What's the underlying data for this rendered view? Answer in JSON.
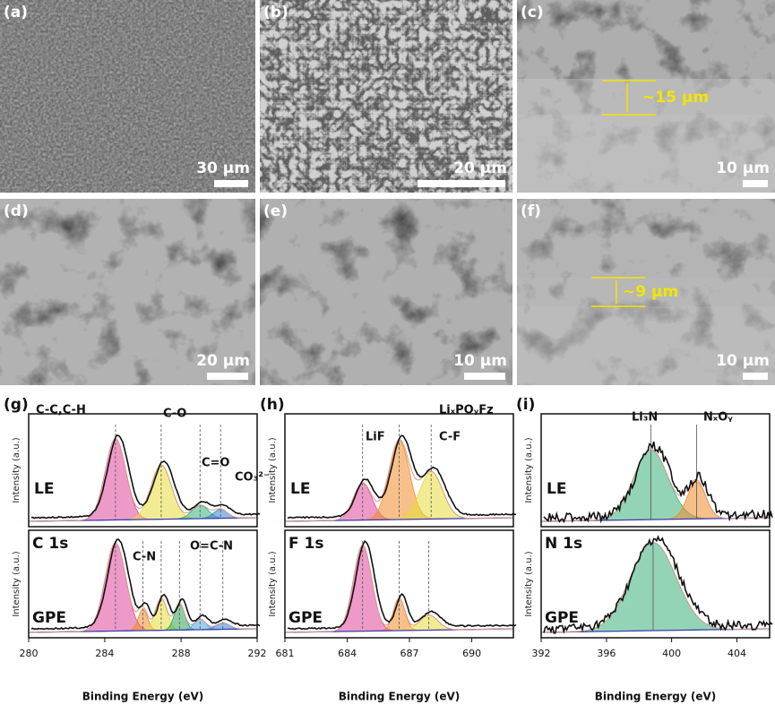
{
  "sem_panels": [
    {
      "label": "(a)",
      "scale": "30 μm"
    },
    {
      "label": "(b)",
      "scale": "20 μm"
    },
    {
      "label": "(c)",
      "scale": "10 μm",
      "thickness": "~15 μm"
    },
    {
      "label": "(d)",
      "scale": "20 μm"
    },
    {
      "label": "(e)",
      "scale": "10 μm"
    },
    {
      "label": "(f)",
      "scale": "10 μm",
      "thickness": "~9 μm"
    }
  ],
  "xps_panels": [
    {
      "label": "(g)",
      "y_label": "Intensity (a.u.)",
      "x_label": "Binding Energy (eV)",
      "top_sample": "LE",
      "bottom_sample": "GPE",
      "core_level": "C 1s",
      "xticks": [
        "280",
        "284",
        "288",
        "292"
      ],
      "top_peaks": [
        "C-C,C-H",
        "C-O",
        "C=O",
        "CO₃²⁻"
      ],
      "bottom_peaks": [
        "C-N",
        "O=C-N"
      ]
    },
    {
      "label": "(h)",
      "y_label": "Intensity (a.u.)",
      "x_label": "Binding Energy (eV)",
      "top_sample": "LE",
      "bottom_sample": "GPE",
      "core_level": "F 1s",
      "xticks": [
        "681",
        "684",
        "687",
        "690"
      ],
      "top_peaks": [
        "LiF",
        "LiₓPOᵧFz",
        "C-F"
      ],
      "bottom_peaks": []
    },
    {
      "label": "(i)",
      "y_label": "Intensity (a.u.)",
      "x_label": "Binding Energy (eV)",
      "top_sample": "LE",
      "bottom_sample": "GPE",
      "core_level": "N 1s",
      "xticks": [
        "392",
        "396",
        "400",
        "404"
      ],
      "top_peaks": [
        "Li₃N",
        "NₓOᵧ"
      ],
      "bottom_peaks": []
    }
  ]
}
